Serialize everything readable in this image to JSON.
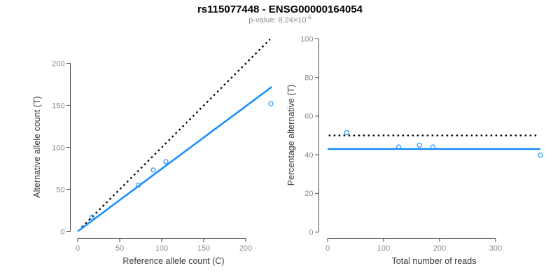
{
  "header": {
    "title": "rs115077448 - ENSG00000164054",
    "pvalue_base": "p-value: 8.24×10",
    "pvalue_exponent": "-6"
  },
  "colors": {
    "background": "#ffffff",
    "title": "#000000",
    "subtitle": "#909090",
    "axis_line": "#4a4a4a",
    "tick_label": "#8a8a8a",
    "axis_title": "#3a3a3a",
    "line_blue": "#1E8FFF",
    "point_blue": "#3399FF",
    "dotted_black": "#000000"
  },
  "chart_data": [
    {
      "name": "allele-count",
      "type": "scatter",
      "xlabel": "Reference allele count (C)",
      "ylabel": "Alternative allele count (T)",
      "xticks": [
        0,
        50,
        100,
        150,
        200
      ],
      "yticks": [
        0,
        50,
        100,
        150,
        200
      ],
      "xlim": [
        0,
        235
      ],
      "ylim": [
        0,
        230
      ],
      "grid": false,
      "legend": "none",
      "points": [
        [
          17,
          17
        ],
        [
          72,
          55
        ],
        [
          90,
          73
        ],
        [
          105,
          83
        ],
        [
          230,
          152
        ]
      ],
      "lines": [
        {
          "name": "identity-dotted-line",
          "style": "dotted",
          "color": "#000000",
          "x1": 5,
          "y1": 5,
          "x2": 229,
          "y2": 228.7
        },
        {
          "name": "fit-solid-line",
          "style": "solid",
          "color": "#1E8FFF",
          "x1": 0,
          "y1": 0,
          "x2": 231,
          "y2": 172
        }
      ]
    },
    {
      "name": "percentage",
      "type": "scatter",
      "xlabel": "Total number of reads",
      "ylabel": "Percentage alternative (T)",
      "xticks": [
        0,
        100,
        200,
        300
      ],
      "yticks": [
        0,
        20,
        40,
        60,
        80,
        100
      ],
      "xlim": [
        0,
        385
      ],
      "ylim": [
        0,
        100
      ],
      "grid": false,
      "legend": "none",
      "points": [
        [
          34,
          51.5
        ],
        [
          127,
          44
        ],
        [
          164,
          45
        ],
        [
          188,
          44
        ],
        [
          380,
          39.8
        ]
      ],
      "lines": [
        {
          "name": "expected-50pct-dotted-line",
          "style": "dotted",
          "color": "#000000",
          "x1": 2,
          "y1": 50,
          "x2": 375,
          "y2": 50
        },
        {
          "name": "observed-ratio-solid-line",
          "style": "solid",
          "color": "#1E8FFF",
          "x1": 0,
          "y1": 43,
          "x2": 380,
          "y2": 43
        }
      ]
    }
  ]
}
